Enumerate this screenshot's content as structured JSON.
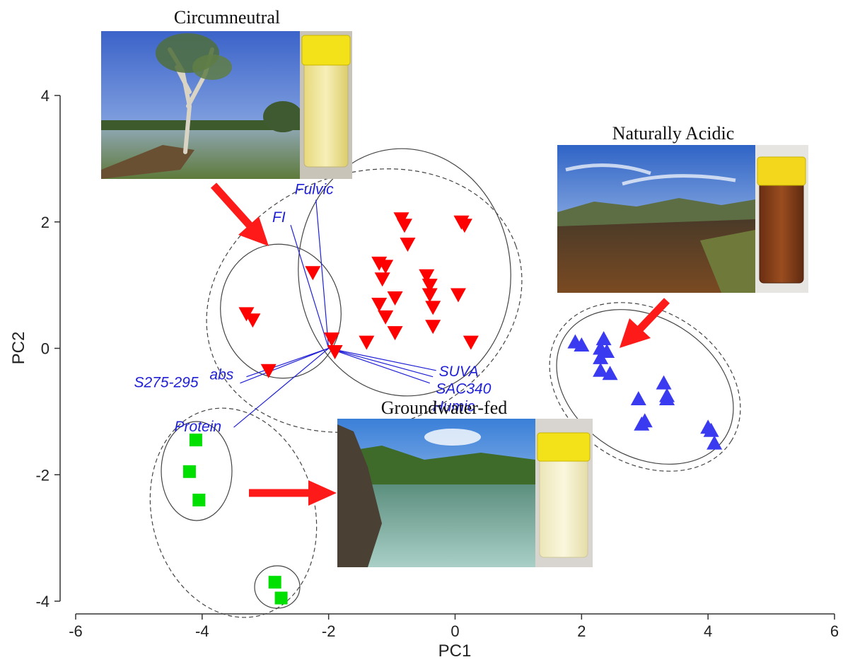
{
  "chart_data": {
    "type": "scatter",
    "title": "",
    "xlabel": "PC1",
    "ylabel": "PC2",
    "xlim": [
      -6,
      6
    ],
    "ylim": [
      -4,
      4
    ],
    "x_ticks": [
      "-6",
      "-4",
      "-2",
      "0",
      "2",
      "4",
      "6"
    ],
    "y_ticks": [
      "-4",
      "-2",
      "0",
      "2",
      "4"
    ],
    "grid": false,
    "series": [
      {
        "name": "Circumneutral",
        "color": "#ff0000",
        "marker": "triangle-down",
        "points": [
          [
            -3.3,
            0.55
          ],
          [
            -3.2,
            0.45
          ],
          [
            -2.95,
            -0.35
          ],
          [
            -2.25,
            1.2
          ],
          [
            -1.95,
            0.15
          ],
          [
            -1.9,
            -0.05
          ],
          [
            -1.4,
            0.1
          ],
          [
            -1.2,
            1.35
          ],
          [
            -1.1,
            1.3
          ],
          [
            -1.15,
            1.1
          ],
          [
            -1.2,
            0.7
          ],
          [
            -1.1,
            0.5
          ],
          [
            -0.95,
            0.25
          ],
          [
            -0.95,
            0.8
          ],
          [
            -0.85,
            2.05
          ],
          [
            -0.8,
            1.95
          ],
          [
            -0.75,
            1.65
          ],
          [
            -0.45,
            1.15
          ],
          [
            -0.4,
            1.0
          ],
          [
            -0.4,
            0.85
          ],
          [
            -0.35,
            0.65
          ],
          [
            -0.35,
            0.35
          ],
          [
            0.05,
            0.85
          ],
          [
            0.1,
            2.0
          ],
          [
            0.15,
            1.95
          ],
          [
            0.25,
            0.1
          ]
        ]
      },
      {
        "name": "Naturally Acidic",
        "color": "#3a3af0",
        "marker": "triangle-up",
        "points": [
          [
            1.9,
            0.1
          ],
          [
            2.0,
            0.05
          ],
          [
            2.35,
            0.15
          ],
          [
            2.3,
            0.0
          ],
          [
            2.4,
            -0.05
          ],
          [
            2.3,
            -0.15
          ],
          [
            2.3,
            -0.35
          ],
          [
            2.45,
            -0.4
          ],
          [
            2.9,
            -0.8
          ],
          [
            3.0,
            -1.15
          ],
          [
            2.95,
            -1.2
          ],
          [
            3.3,
            -0.55
          ],
          [
            3.35,
            -0.75
          ],
          [
            3.35,
            -0.8
          ],
          [
            4.0,
            -1.25
          ],
          [
            4.05,
            -1.3
          ],
          [
            4.1,
            -1.5
          ]
        ]
      },
      {
        "name": "Groundwater-fed",
        "color": "#00e000",
        "marker": "square",
        "points": [
          [
            -4.1,
            -1.45
          ],
          [
            -4.2,
            -1.95
          ],
          [
            -4.05,
            -2.4
          ],
          [
            -2.85,
            -3.7
          ],
          [
            -2.75,
            -3.95
          ]
        ]
      }
    ],
    "loadings": [
      {
        "name": "Fulvic",
        "x": -2.2,
        "y": 2.35
      },
      {
        "name": "FI",
        "x": -2.6,
        "y": 1.95
      },
      {
        "name": "SUVA",
        "x": -0.3,
        "y": -0.35
      },
      {
        "name": "SAC340",
        "x": -0.35,
        "y": -0.45
      },
      {
        "name": "Humic",
        "x": -0.4,
        "y": -0.55
      },
      {
        "name": "abs",
        "x": -3.3,
        "y": -0.45
      },
      {
        "name": "S275-295",
        "x": -3.4,
        "y": -0.55
      },
      {
        "name": "Protein",
        "x": -3.5,
        "y": -1.25
      }
    ],
    "group_labels": [
      "Circumneutral",
      "Naturally Acidic",
      "Groundwater-fed"
    ]
  },
  "colors": {
    "loading_vector": "#1f1fd6",
    "arrow": "#ff1a1a"
  },
  "photos": [
    "lake-with-tree-photo",
    "water-sample-vial-pale",
    "highland-stream-photo",
    "water-sample-vial-brown",
    "coastal-lake-photo",
    "water-sample-vial-clear"
  ]
}
